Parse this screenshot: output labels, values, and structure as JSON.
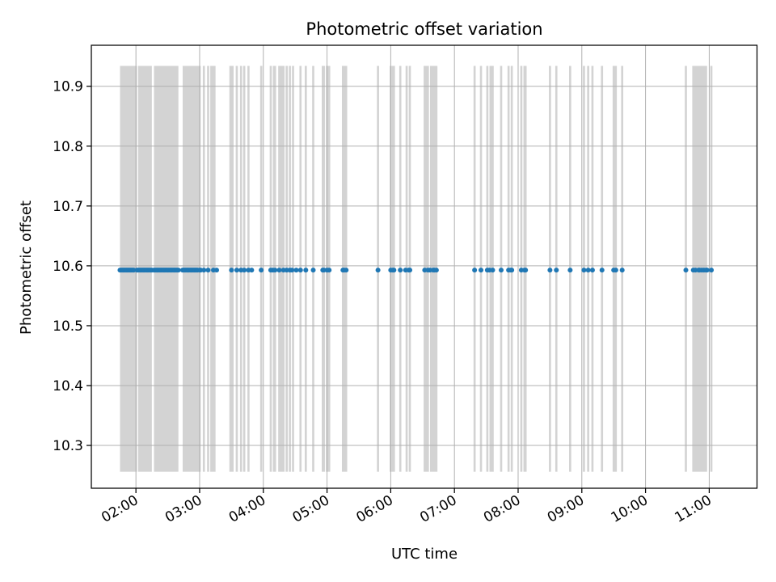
{
  "chart_data": {
    "type": "scatter",
    "title": "Photometric offset variation",
    "xlabel": "UTC time",
    "ylabel": "Photometric offset",
    "x_unit": "UTC time (HH:MM)",
    "xlim": [
      "01:18",
      "11:45"
    ],
    "ylim": [
      10.2285,
      10.9685
    ],
    "x_ticks": [
      "02:00",
      "03:00",
      "04:00",
      "05:00",
      "06:00",
      "07:00",
      "08:00",
      "09:00",
      "10:00",
      "11:00"
    ],
    "y_ticks": [
      10.3,
      10.4,
      10.5,
      10.6,
      10.7,
      10.8,
      10.9
    ],
    "y_tick_labels": [
      "10.3",
      "10.4",
      "10.5",
      "10.6",
      "10.7",
      "10.8",
      "10.9"
    ],
    "grid": true,
    "x_tick_rotation_deg": 30,
    "series": [
      {
        "marker_color": "#1f77b4",
        "x": [
          "01:45",
          "01:46",
          "01:47",
          "01:48",
          "01:49",
          "01:50",
          "01:51",
          "01:52",
          "01:53",
          "01:54",
          "01:55",
          "01:56",
          "01:57",
          "01:58",
          "02:01",
          "02:02",
          "02:03",
          "02:04",
          "02:05",
          "02:06",
          "02:07",
          "02:08",
          "02:09",
          "02:10",
          "02:11",
          "02:12",
          "02:13",
          "02:14",
          "02:15",
          "02:17",
          "02:18",
          "02:19",
          "02:20",
          "02:21",
          "02:22",
          "02:23",
          "02:24",
          "02:25",
          "02:26",
          "02:27",
          "02:28",
          "02:29",
          "02:30",
          "02:31",
          "02:32",
          "02:33",
          "02:34",
          "02:35",
          "02:36",
          "02:37",
          "02:38",
          "02:39",
          "02:40",
          "02:44",
          "02:45",
          "02:46",
          "02:47",
          "02:48",
          "02:49",
          "02:50",
          "02:51",
          "02:52",
          "02:53",
          "02:54",
          "02:55",
          "02:56",
          "02:57",
          "02:58",
          "03:00",
          "03:01",
          "03:04",
          "03:08",
          "03:13",
          "03:16",
          "03:30",
          "03:35",
          "03:39",
          "03:42",
          "03:46",
          "03:49",
          "03:58",
          "04:07",
          "04:09",
          "04:11",
          "04:15",
          "04:19",
          "04:22",
          "04:25",
          "04:27",
          "04:31",
          "04:35",
          "04:40",
          "04:47",
          "04:56",
          "04:57",
          "05:00",
          "05:02",
          "05:15",
          "05:16",
          "05:18",
          "05:48",
          "06:00",
          "06:02",
          "06:03",
          "06:09",
          "06:14",
          "06:17",
          "06:18",
          "06:32",
          "06:35",
          "06:37",
          "06:40",
          "06:41",
          "06:43",
          "07:19",
          "07:25",
          "07:31",
          "07:33",
          "07:36",
          "07:44",
          "07:51",
          "07:53",
          "07:54",
          "08:03",
          "08:06",
          "08:07",
          "08:30",
          "08:36",
          "08:49",
          "09:02",
          "09:06",
          "09:10",
          "09:19",
          "09:30",
          "09:32",
          "09:38",
          "10:38",
          "10:45",
          "10:47",
          "10:50",
          "10:51",
          "10:53",
          "10:55",
          "10:57",
          "10:58",
          "11:02"
        ],
        "y": [
          10.593,
          10.593,
          10.593,
          10.593,
          10.593,
          10.593,
          10.593,
          10.593,
          10.593,
          10.593,
          10.593,
          10.593,
          10.593,
          10.593,
          10.593,
          10.593,
          10.593,
          10.593,
          10.593,
          10.593,
          10.593,
          10.593,
          10.593,
          10.593,
          10.593,
          10.593,
          10.593,
          10.593,
          10.593,
          10.593,
          10.593,
          10.593,
          10.593,
          10.593,
          10.593,
          10.593,
          10.593,
          10.593,
          10.593,
          10.593,
          10.593,
          10.593,
          10.593,
          10.593,
          10.593,
          10.593,
          10.593,
          10.593,
          10.593,
          10.593,
          10.593,
          10.593,
          10.593,
          10.593,
          10.593,
          10.593,
          10.593,
          10.593,
          10.593,
          10.593,
          10.593,
          10.593,
          10.593,
          10.593,
          10.593,
          10.593,
          10.593,
          10.593,
          10.593,
          10.593,
          10.593,
          10.593,
          10.593,
          10.593,
          10.593,
          10.593,
          10.593,
          10.593,
          10.593,
          10.593,
          10.593,
          10.593,
          10.593,
          10.593,
          10.593,
          10.593,
          10.593,
          10.593,
          10.593,
          10.593,
          10.593,
          10.593,
          10.593,
          10.593,
          10.593,
          10.593,
          10.593,
          10.593,
          10.593,
          10.593,
          10.593,
          10.593,
          10.593,
          10.593,
          10.593,
          10.593,
          10.593,
          10.593,
          10.593,
          10.593,
          10.593,
          10.593,
          10.593,
          10.593,
          10.593,
          10.593,
          10.593,
          10.593,
          10.593,
          10.593,
          10.593,
          10.593,
          10.593,
          10.593,
          10.593,
          10.593,
          10.593,
          10.593,
          10.593,
          10.593,
          10.593,
          10.593,
          10.593,
          10.593,
          10.593,
          10.593,
          10.593,
          10.593,
          10.593,
          10.593,
          10.593,
          10.593,
          10.593,
          10.593,
          10.593,
          10.593
        ]
      }
    ],
    "error_band_color": "#d3d3d3",
    "error_band_range": [
      10.256,
      10.934
    ],
    "error_band_segments": [
      [
        "01:45",
        "02:01"
      ],
      [
        "02:02",
        "02:15"
      ],
      [
        "02:17",
        "02:40"
      ],
      [
        "02:44",
        "03:01"
      ],
      [
        "03:03",
        "03:05"
      ],
      [
        "03:07",
        "03:09"
      ],
      [
        "03:10",
        "03:15"
      ],
      [
        "03:28",
        "03:32"
      ],
      [
        "03:34",
        "03:36"
      ],
      [
        "03:38",
        "03:40"
      ],
      [
        "03:41",
        "03:43"
      ],
      [
        "03:45",
        "03:47"
      ],
      [
        "03:57",
        "03:59"
      ],
      [
        "04:06",
        "04:08"
      ],
      [
        "04:09",
        "04:12"
      ],
      [
        "04:14",
        "04:20"
      ],
      [
        "04:21",
        "04:23"
      ],
      [
        "04:24",
        "04:26"
      ],
      [
        "04:27",
        "04:29"
      ],
      [
        "04:34",
        "04:36"
      ],
      [
        "04:39",
        "04:41"
      ],
      [
        "04:46",
        "04:48"
      ],
      [
        "04:55",
        "04:58"
      ],
      [
        "04:59",
        "05:03"
      ],
      [
        "05:14",
        "05:19"
      ],
      [
        "05:47",
        "05:49"
      ],
      [
        "05:59",
        "06:01"
      ],
      [
        "06:01",
        "06:04"
      ],
      [
        "06:08",
        "06:10"
      ],
      [
        "06:14",
        "06:16"
      ],
      [
        "06:17",
        "06:19"
      ],
      [
        "06:31",
        "06:36"
      ],
      [
        "06:37",
        "06:44"
      ],
      [
        "07:18",
        "07:20"
      ],
      [
        "07:24",
        "07:26"
      ],
      [
        "07:30",
        "07:32"
      ],
      [
        "07:33",
        "07:37"
      ],
      [
        "07:43",
        "07:45"
      ],
      [
        "07:50",
        "07:52"
      ],
      [
        "07:53",
        "07:55"
      ],
      [
        "08:02",
        "08:04"
      ],
      [
        "08:05",
        "08:08"
      ],
      [
        "08:29",
        "08:31"
      ],
      [
        "08:35",
        "08:37"
      ],
      [
        "08:48",
        "08:50"
      ],
      [
        "09:01",
        "09:03"
      ],
      [
        "09:05",
        "09:07"
      ],
      [
        "09:09",
        "09:11"
      ],
      [
        "09:18",
        "09:20"
      ],
      [
        "09:29",
        "09:31"
      ],
      [
        "09:31",
        "09:33"
      ],
      [
        "09:37",
        "09:39"
      ],
      [
        "10:37",
        "10:39"
      ],
      [
        "10:44",
        "10:58"
      ],
      [
        "11:01",
        "11:03"
      ]
    ]
  }
}
